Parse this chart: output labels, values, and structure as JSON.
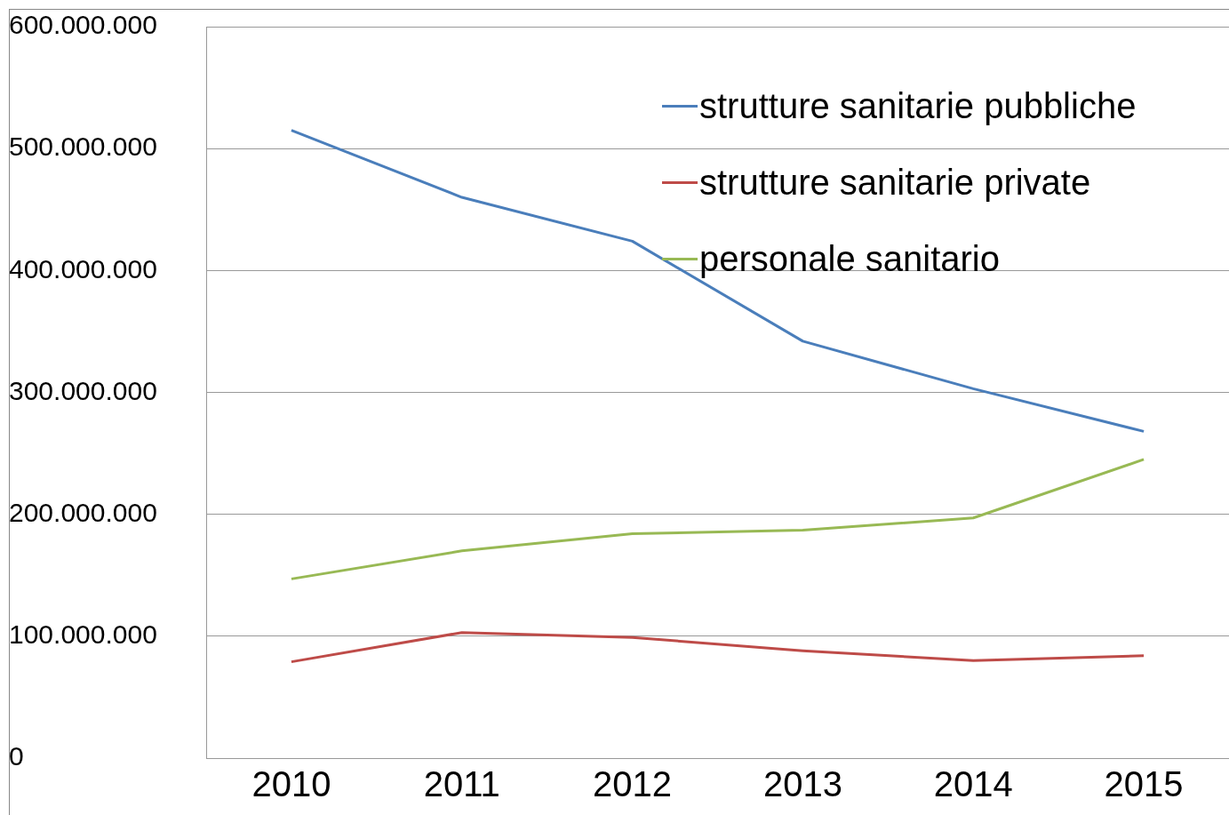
{
  "chart_data": {
    "type": "line",
    "categories": [
      "2010",
      "2011",
      "2012",
      "2013",
      "2014",
      "2015"
    ],
    "series": [
      {
        "name": "strutture sanitarie pubbliche",
        "color": "#4a7ebb",
        "values": [
          515000000,
          460000000,
          424000000,
          342000000,
          303000000,
          268000000
        ]
      },
      {
        "name": "strutture sanitarie private",
        "color": "#be4b48",
        "values": [
          79000000,
          103000000,
          99000000,
          88000000,
          80000000,
          84000000
        ]
      },
      {
        "name": "personale sanitario",
        "color": "#98b954",
        "values": [
          147000000,
          170000000,
          184000000,
          187000000,
          197000000,
          245000000
        ]
      }
    ],
    "ylim": [
      0,
      600000000
    ],
    "yticks": [
      {
        "value": 0,
        "label": "0"
      },
      {
        "value": 100000000,
        "label": "100.000.000"
      },
      {
        "value": 200000000,
        "label": "200.000.000"
      },
      {
        "value": 300000000,
        "label": "300.000.000"
      },
      {
        "value": 400000000,
        "label": "400.000.000"
      },
      {
        "value": 500000000,
        "label": "500.000.000"
      },
      {
        "value": 600000000,
        "label": "600.000.000"
      }
    ],
    "grid": "y",
    "legend": "top right",
    "marker": "none",
    "line_style": "solid"
  }
}
